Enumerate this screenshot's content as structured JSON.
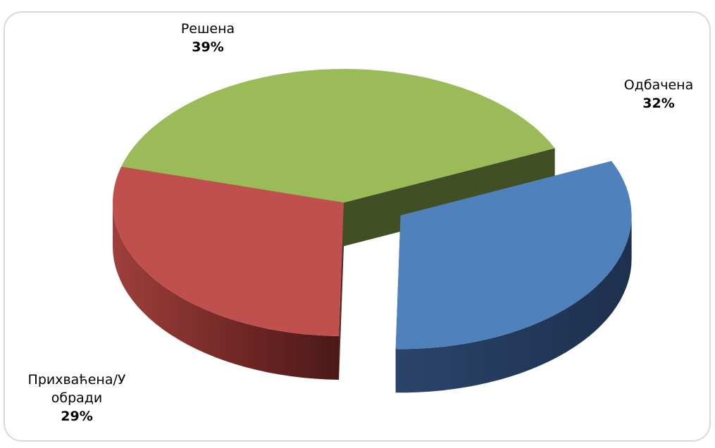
{
  "chart_data": {
    "type": "pie",
    "title": "",
    "slices": [
      {
        "label": "Одбачена",
        "value": 32,
        "value_label": "32%",
        "color": "#4f81bd",
        "exploded": true
      },
      {
        "label": "Прихваћена/У обради",
        "label_lines": [
          "Прихваћена/У",
          "обради"
        ],
        "value": 29,
        "value_label": "29%",
        "color": "#c0504d",
        "exploded": false
      },
      {
        "label": "Решена",
        "value": 39,
        "value_label": "39%",
        "color": "#9bbb59",
        "exploded": false
      }
    ],
    "style": "3d-exploded",
    "legend": "none"
  }
}
